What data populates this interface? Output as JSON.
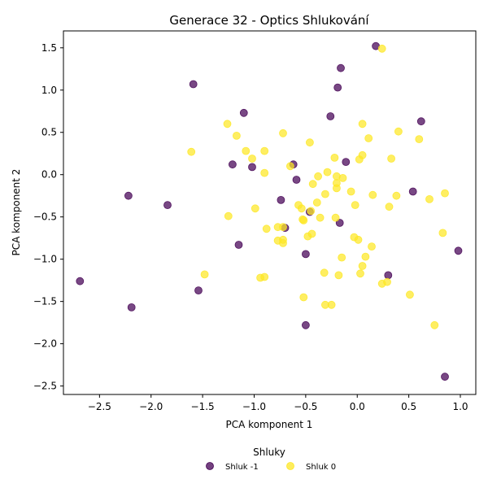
{
  "chart_data": {
    "type": "scatter",
    "title": "Generace 32 - Optics Shlukování",
    "xlabel": "PCA komponent 1",
    "ylabel": "PCA komponent 2",
    "xlim": [
      -2.85,
      1.15
    ],
    "ylim": [
      -2.6,
      1.7
    ],
    "xticks": [
      -2.5,
      -2.0,
      -1.5,
      -1.0,
      -0.5,
      0.0,
      0.5,
      1.0
    ],
    "xtick_labels": [
      "−2.5",
      "−2.0",
      "−1.5",
      "−1.0",
      "−0.5",
      "0.0",
      "0.5",
      "1.0"
    ],
    "yticks": [
      1.5,
      1.0,
      0.5,
      0.0,
      -0.5,
      -1.0,
      -1.5,
      -2.0,
      -2.5
    ],
    "ytick_labels": [
      "1.5",
      "1.0",
      "0.5",
      "0.0",
      "−0.5",
      "−1.0",
      "−1.5",
      "−2.0",
      "−2.5"
    ],
    "grid": false,
    "legend": {
      "title": "Shluky",
      "position": "bottom-center"
    },
    "series": [
      {
        "name": "Shluk -1",
        "color": "#440154",
        "points": [
          [
            -2.69,
            -1.26
          ],
          [
            -2.22,
            -0.25
          ],
          [
            -2.19,
            -1.57
          ],
          [
            -1.84,
            -0.36
          ],
          [
            -1.59,
            1.07
          ],
          [
            -1.54,
            -1.37
          ],
          [
            -1.21,
            0.12
          ],
          [
            -1.15,
            -0.83
          ],
          [
            -1.1,
            0.73
          ],
          [
            -1.02,
            0.09
          ],
          [
            -0.74,
            -0.3
          ],
          [
            -0.7,
            -0.63
          ],
          [
            -0.62,
            0.12
          ],
          [
            -0.59,
            -0.06
          ],
          [
            -0.5,
            -0.94
          ],
          [
            -0.5,
            -1.78
          ],
          [
            -0.46,
            -0.44
          ],
          [
            -0.26,
            0.69
          ],
          [
            -0.19,
            1.03
          ],
          [
            -0.17,
            -0.57
          ],
          [
            -0.16,
            1.26
          ],
          [
            -0.11,
            0.15
          ],
          [
            0.18,
            1.52
          ],
          [
            0.3,
            -1.19
          ],
          [
            0.54,
            -0.2
          ],
          [
            0.62,
            0.63
          ],
          [
            0.85,
            -2.39
          ],
          [
            0.98,
            -0.9
          ]
        ]
      },
      {
        "name": "Shluk 0",
        "color": "#fde725",
        "points": [
          [
            -1.61,
            0.27
          ],
          [
            -1.48,
            -1.18
          ],
          [
            -1.26,
            0.6
          ],
          [
            -1.25,
            -0.49
          ],
          [
            -1.17,
            0.46
          ],
          [
            -1.08,
            0.28
          ],
          [
            -1.02,
            0.19
          ],
          [
            -0.99,
            -0.4
          ],
          [
            -0.94,
            -1.22
          ],
          [
            -0.9,
            0.02
          ],
          [
            -0.9,
            0.28
          ],
          [
            -0.9,
            -1.21
          ],
          [
            -0.88,
            -0.64
          ],
          [
            -0.77,
            -0.78
          ],
          [
            -0.77,
            -0.62
          ],
          [
            -0.72,
            -0.62
          ],
          [
            -0.72,
            -0.77
          ],
          [
            -0.72,
            -0.81
          ],
          [
            -0.72,
            0.49
          ],
          [
            -0.65,
            0.1
          ],
          [
            -0.57,
            -0.36
          ],
          [
            -0.54,
            -0.4
          ],
          [
            -0.53,
            -0.53
          ],
          [
            -0.52,
            -0.54
          ],
          [
            -0.52,
            -1.45
          ],
          [
            -0.48,
            -0.73
          ],
          [
            -0.46,
            0.38
          ],
          [
            -0.45,
            -0.43
          ],
          [
            -0.44,
            -0.7
          ],
          [
            -0.43,
            -0.11
          ],
          [
            -0.39,
            -0.33
          ],
          [
            -0.38,
            -0.02
          ],
          [
            -0.36,
            -0.51
          ],
          [
            -0.32,
            -1.16
          ],
          [
            -0.31,
            -0.23
          ],
          [
            -0.31,
            -1.54
          ],
          [
            -0.29,
            0.03
          ],
          [
            -0.25,
            -1.54
          ],
          [
            -0.22,
            0.2
          ],
          [
            -0.21,
            -0.51
          ],
          [
            -0.2,
            -0.02
          ],
          [
            -0.2,
            -0.1
          ],
          [
            -0.2,
            -0.16
          ],
          [
            -0.18,
            -1.19
          ],
          [
            -0.15,
            -0.98
          ],
          [
            -0.14,
            -0.04
          ],
          [
            -0.06,
            -0.2
          ],
          [
            -0.03,
            -0.74
          ],
          [
            -0.02,
            -0.36
          ],
          [
            0.01,
            -0.77
          ],
          [
            0.02,
            0.18
          ],
          [
            0.03,
            -1.17
          ],
          [
            0.05,
            0.6
          ],
          [
            0.05,
            -1.08
          ],
          [
            0.05,
            0.23
          ],
          [
            0.08,
            -0.97
          ],
          [
            0.11,
            0.43
          ],
          [
            0.14,
            -0.85
          ],
          [
            0.15,
            -0.24
          ],
          [
            0.24,
            -1.29
          ],
          [
            0.29,
            -1.27
          ],
          [
            0.31,
            -0.38
          ],
          [
            0.33,
            0.19
          ],
          [
            0.38,
            -0.25
          ],
          [
            0.4,
            0.51
          ],
          [
            0.51,
            -1.42
          ],
          [
            0.6,
            0.42
          ],
          [
            0.7,
            -0.29
          ],
          [
            0.75,
            -1.78
          ],
          [
            0.83,
            -0.69
          ],
          [
            0.85,
            -0.22
          ],
          [
            0.24,
            1.49
          ]
        ]
      }
    ]
  }
}
